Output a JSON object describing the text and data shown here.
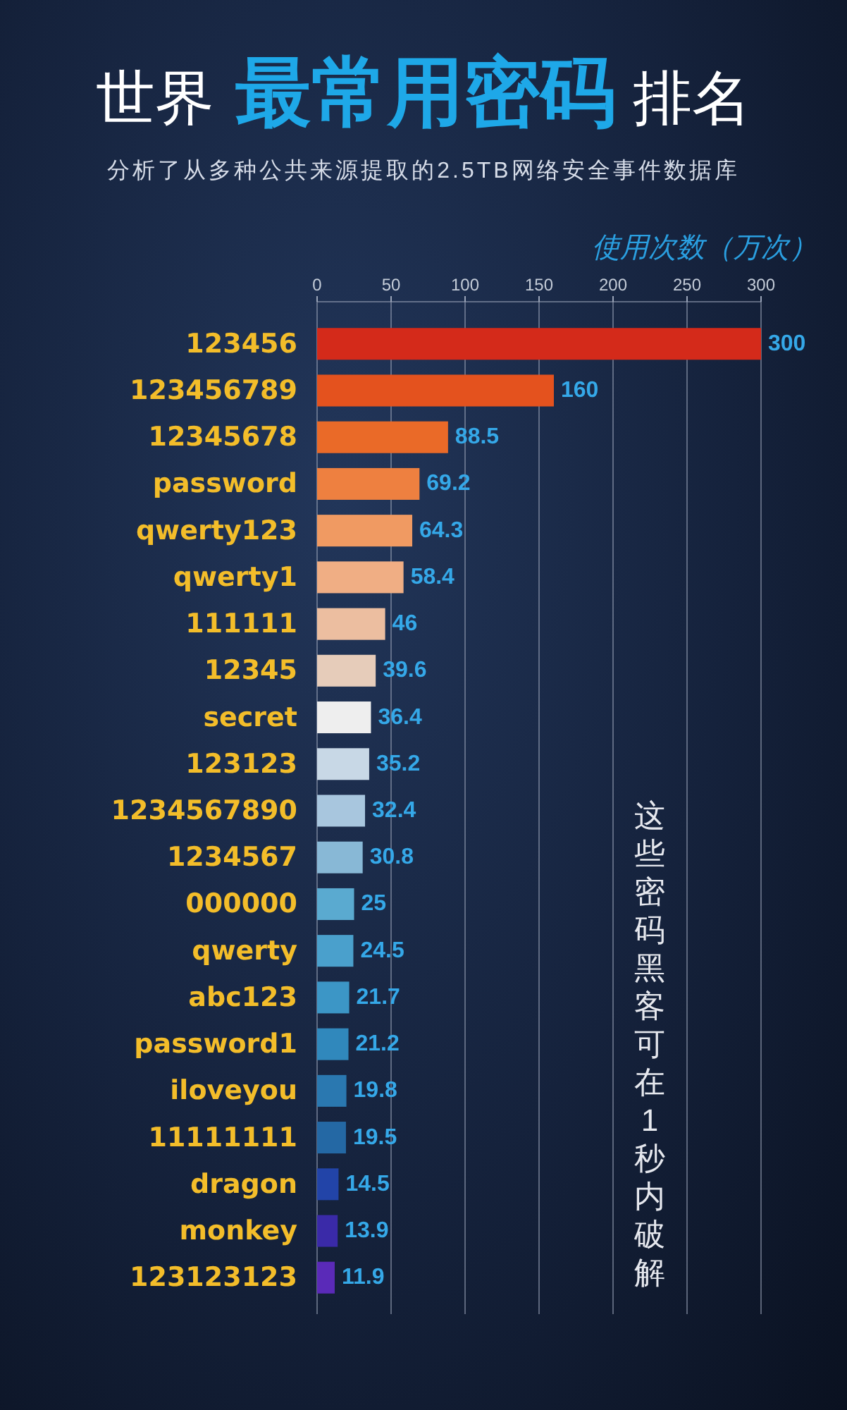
{
  "chart_data": {
    "type": "bar",
    "orientation": "horizontal",
    "title": "世界 最常用密码 排名",
    "subtitle": "分析了从多种公共来源提取的2.5TB网络安全事件数据库",
    "xlabel": "使用次数（万次）",
    "categories": [
      "123456",
      "123456789",
      "12345678",
      "password",
      "qwerty123",
      "qwerty1",
      "111111",
      "12345",
      "secret",
      "123123",
      "1234567890",
      "1234567",
      "000000",
      "qwerty",
      "abc123",
      "password1",
      "iloveyou",
      "11111111",
      "dragon",
      "monkey",
      "123123123"
    ],
    "values": [
      300,
      160,
      88.5,
      69.2,
      64.3,
      58.4,
      46,
      39.6,
      36.4,
      35.2,
      32.4,
      30.8,
      25,
      24.5,
      21.7,
      21.2,
      19.8,
      19.5,
      14.5,
      13.9,
      11.9
    ],
    "colors": [
      "#d42a1a",
      "#e4521e",
      "#ea6a28",
      "#ee8040",
      "#f09a62",
      "#f0ae84",
      "#ecbea0",
      "#e6ccba",
      "#eeeeee",
      "#c8d8e6",
      "#a8c6de",
      "#88b8d6",
      "#5aaad0",
      "#4aa0cc",
      "#3c96c6",
      "#3088bc",
      "#2a78b0",
      "#2468a4",
      "#2244a8",
      "#3a2aa8",
      "#5a2ab8"
    ],
    "xlim": [
      0,
      300
    ],
    "xticks": [
      0,
      50,
      100,
      150,
      200,
      250,
      300
    ],
    "grid": "x",
    "data_labels": true,
    "annotations": [
      "这些密码黑客可在1秒内破解"
    ]
  }
}
